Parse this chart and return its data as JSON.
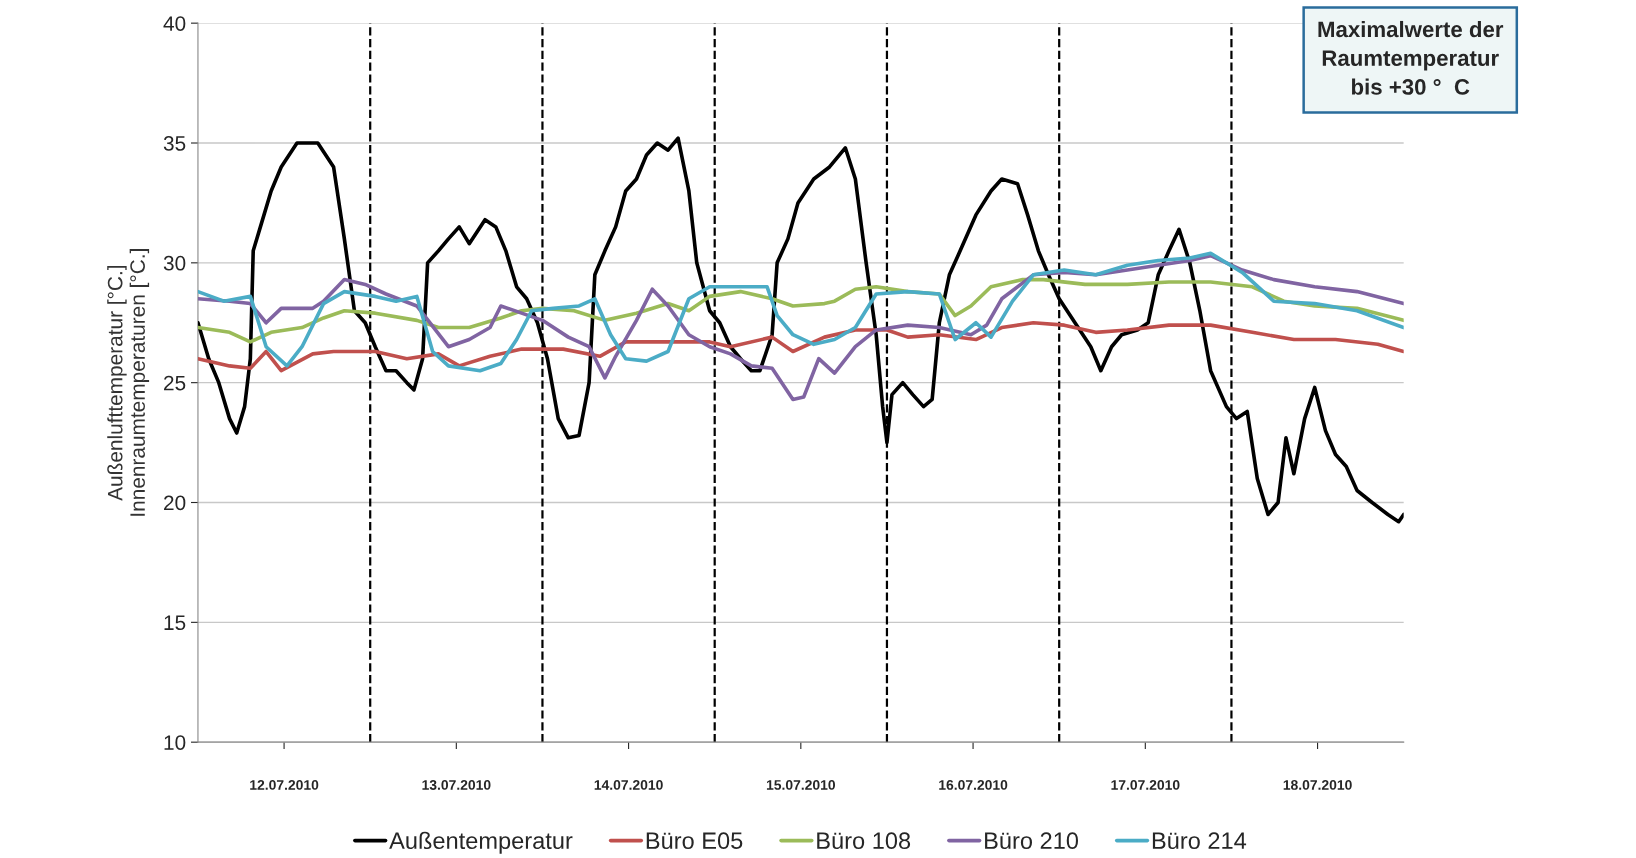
{
  "chart_data": {
    "type": "line",
    "ylabel": "Außenlufttemperatur [°C.]\nInnenraumtemperaturen [°C.]",
    "xlim": [
      "2010-07-12T00:00",
      "2010-07-19T00:00"
    ],
    "ylim": [
      10,
      40
    ],
    "yticks": [
      10,
      15,
      20,
      25,
      30,
      35,
      40
    ],
    "xticks": [
      {
        "value": "2010-07-12T12:00",
        "label": "12.07.2010"
      },
      {
        "value": "2010-07-13T12:00",
        "label": "13.07.2010"
      },
      {
        "value": "2010-07-14T12:00",
        "label": "14.07.2010"
      },
      {
        "value": "2010-07-15T12:00",
        "label": "15.07.2010"
      },
      {
        "value": "2010-07-16T12:00",
        "label": "16.07.2010"
      },
      {
        "value": "2010-07-17T12:00",
        "label": "17.07.2010"
      },
      {
        "value": "2010-07-18T12:00",
        "label": "18.07.2010"
      }
    ],
    "grid": "y",
    "legend": "bottom",
    "line_style": "solid",
    "marker": "none",
    "ref_lines": [
      {
        "axis": "x",
        "value": "2010-07-13T00:00",
        "color": "#000000",
        "line_style": "dashed"
      },
      {
        "axis": "x",
        "value": "2010-07-14T00:00",
        "color": "#000000",
        "line_style": "dashed"
      },
      {
        "axis": "x",
        "value": "2010-07-15T00:00",
        "color": "#000000",
        "line_style": "dashed"
      },
      {
        "axis": "x",
        "value": "2010-07-16T00:00",
        "color": "#000000",
        "line_style": "dashed"
      },
      {
        "axis": "x",
        "value": "2010-07-17T00:00",
        "color": "#000000",
        "line_style": "dashed"
      },
      {
        "axis": "x",
        "value": "2010-07-18T00:00",
        "color": "#000000",
        "line_style": "dashed"
      }
    ],
    "annotations": [
      "Maximalwerte der\nRaumtemperatur\nbis +30 °  C"
    ],
    "series": [
      {
        "name": "Außentemperatur",
        "color": "#000000",
        "x": [
          "2010-07-12T00:00",
          "2010-07-12T01:30",
          "2010-07-12T02:54",
          "2010-07-12T04:24",
          "2010-07-12T05:24",
          "2010-07-12T06:30",
          "2010-07-12T07:18",
          "2010-07-12T07:42",
          "2010-07-12T08:42",
          "2010-07-12T10:12",
          "2010-07-12T11:36",
          "2010-07-12T13:48",
          "2010-07-12T15:18",
          "2010-07-12T16:42",
          "2010-07-12T18:54",
          "2010-07-12T20:24",
          "2010-07-12T21:48",
          "2010-07-12T23:18",
          "2010-07-13T00:42",
          "2010-07-13T02:12",
          "2010-07-13T03:36",
          "2010-07-13T05:06",
          "2010-07-13T06:06",
          "2010-07-13T07:18",
          "2010-07-13T08:00",
          "2010-07-13T09:30",
          "2010-07-13T10:54",
          "2010-07-13T12:24",
          "2010-07-13T13:48",
          "2010-07-13T16:00",
          "2010-07-13T17:30",
          "2010-07-13T18:54",
          "2010-07-13T20:24",
          "2010-07-13T21:48",
          "2010-07-13T23:18",
          "2010-07-14T00:42",
          "2010-07-14T02:12",
          "2010-07-14T03:36",
          "2010-07-14T05:06",
          "2010-07-14T06:30",
          "2010-07-14T07:18",
          "2010-07-14T08:42",
          "2010-07-14T10:12",
          "2010-07-14T11:36",
          "2010-07-14T13:06",
          "2010-07-14T14:30",
          "2010-07-14T16:00",
          "2010-07-14T17:30",
          "2010-07-14T18:54",
          "2010-07-14T20:24",
          "2010-07-14T21:30",
          "2010-07-14T23:18",
          "2010-07-15T00:42",
          "2010-07-15T02:12",
          "2010-07-15T03:36",
          "2010-07-15T05:06",
          "2010-07-15T06:18",
          "2010-07-15T08:00",
          "2010-07-15T08:42",
          "2010-07-15T10:12",
          "2010-07-15T11:36",
          "2010-07-15T13:48",
          "2010-07-15T16:00",
          "2010-07-15T18:12",
          "2010-07-15T19:36",
          "2010-07-15T21:06",
          "2010-07-15T22:30",
          "2010-07-15T23:24",
          "2010-07-16T00:00",
          "2010-07-16T00:42",
          "2010-07-16T02:12",
          "2010-07-16T03:36",
          "2010-07-16T05:06",
          "2010-07-16T06:18",
          "2010-07-16T07:18",
          "2010-07-16T08:42",
          "2010-07-16T10:12",
          "2010-07-16T12:24",
          "2010-07-16T14:30",
          "2010-07-16T16:00",
          "2010-07-16T18:12",
          "2010-07-16T19:36",
          "2010-07-16T21:06",
          "2010-07-16T22:30",
          "2010-07-17T00:00",
          "2010-07-17T02:12",
          "2010-07-17T04:24",
          "2010-07-17T05:48",
          "2010-07-17T07:18",
          "2010-07-17T08:42",
          "2010-07-17T10:54",
          "2010-07-17T12:24",
          "2010-07-17T13:48",
          "2010-07-17T15:18",
          "2010-07-17T16:42",
          "2010-07-17T18:12",
          "2010-07-17T19:36",
          "2010-07-17T21:06",
          "2010-07-17T23:18",
          "2010-07-18T00:42",
          "2010-07-18T02:12",
          "2010-07-18T03:36",
          "2010-07-18T05:06",
          "2010-07-18T06:30",
          "2010-07-18T07:36",
          "2010-07-18T08:42",
          "2010-07-18T10:12",
          "2010-07-18T11:36",
          "2010-07-18T13:06",
          "2010-07-18T14:30",
          "2010-07-18T16:00",
          "2010-07-18T17:30",
          "2010-07-18T19:36",
          "2010-07-18T21:48",
          "2010-07-18T23:18",
          "2010-07-19T00:00"
        ],
        "values": [
          27.5,
          26,
          25,
          23.5,
          22.9,
          24,
          26,
          30.5,
          31.5,
          33,
          34,
          35,
          35,
          35,
          34,
          31,
          28,
          27.5,
          26.5,
          25.5,
          25.5,
          25,
          24.7,
          26,
          30,
          30.5,
          31,
          31.5,
          30.8,
          31.8,
          31.5,
          30.5,
          29,
          28.5,
          27.5,
          26,
          23.5,
          22.7,
          22.8,
          25,
          29.5,
          30.5,
          31.5,
          33,
          33.5,
          34.5,
          35,
          34.7,
          35.2,
          33,
          30,
          28,
          27.5,
          26.5,
          26,
          25.5,
          25.5,
          27,
          30,
          31,
          32.5,
          33.5,
          34,
          34.8,
          33.5,
          30,
          27,
          24,
          22.5,
          24.5,
          25,
          24.5,
          24,
          24.3,
          27.5,
          29.5,
          30.5,
          32,
          33,
          33.5,
          33.3,
          32,
          30.5,
          29.5,
          28.5,
          27.5,
          26.5,
          25.5,
          26.5,
          27,
          27.2,
          27.5,
          29.5,
          30.5,
          31.4,
          30,
          28,
          25.5,
          24,
          23.5,
          23.8,
          21,
          19.5,
          20,
          22.7,
          21.2,
          23.5,
          24.8,
          23,
          22,
          21.5,
          20.5,
          20,
          19.5,
          19.2,
          19.5
        ]
      },
      {
        "name": "Büro E05",
        "color": "#c0504d",
        "x": [
          "2010-07-12T00:00",
          "2010-07-12T04:24",
          "2010-07-12T07:18",
          "2010-07-12T09:30",
          "2010-07-12T11:36",
          "2010-07-12T16:00",
          "2010-07-12T18:54",
          "2010-07-13T00:42",
          "2010-07-13T05:06",
          "2010-07-13T09:30",
          "2010-07-13T12:24",
          "2010-07-13T16:42",
          "2010-07-13T21:06",
          "2010-07-14T02:54",
          "2010-07-14T08:00",
          "2010-07-14T11:36",
          "2010-07-14T17:30",
          "2010-07-14T23:18",
          "2010-07-15T02:12",
          "2010-07-15T08:00",
          "2010-07-15T10:54",
          "2010-07-15T15:18",
          "2010-07-15T19:36",
          "2010-07-16T00:00",
          "2010-07-16T02:54",
          "2010-07-16T07:18",
          "2010-07-16T12:24",
          "2010-07-16T16:00",
          "2010-07-16T20:24",
          "2010-07-17T00:42",
          "2010-07-17T05:06",
          "2010-07-17T09:30",
          "2010-07-17T15:18",
          "2010-07-17T21:06",
          "2010-07-18T02:54",
          "2010-07-18T08:42",
          "2010-07-18T14:30",
          "2010-07-18T20:24",
          "2010-07-19T00:00"
        ],
        "values": [
          26,
          25.7,
          25.6,
          26.3,
          25.5,
          26.2,
          26.3,
          26.3,
          26,
          26.2,
          25.7,
          26.1,
          26.4,
          26.4,
          26.1,
          26.7,
          26.7,
          26.7,
          26.5,
          26.9,
          26.3,
          26.9,
          27.2,
          27.2,
          26.9,
          27,
          26.8,
          27.3,
          27.5,
          27.4,
          27.1,
          27.2,
          27.4,
          27.4,
          27.1,
          26.8,
          26.8,
          26.6,
          26.3
        ]
      },
      {
        "name": "Büro 108",
        "color": "#9bbb59",
        "x": [
          "2010-07-12T00:00",
          "2010-07-12T04:24",
          "2010-07-12T07:18",
          "2010-07-12T10:12",
          "2010-07-12T14:30",
          "2010-07-12T17:30",
          "2010-07-12T20:24",
          "2010-07-13T00:42",
          "2010-07-13T06:30",
          "2010-07-13T09:30",
          "2010-07-13T13:48",
          "2010-07-13T18:12",
          "2010-07-13T21:06",
          "2010-07-14T00:00",
          "2010-07-14T04:24",
          "2010-07-14T08:42",
          "2010-07-14T13:06",
          "2010-07-14T17:30",
          "2010-07-14T20:24",
          "2010-07-14T23:18",
          "2010-07-15T03:36",
          "2010-07-15T08:00",
          "2010-07-15T10:54",
          "2010-07-15T15:18",
          "2010-07-15T16:42",
          "2010-07-15T19:36",
          "2010-07-15T22:30",
          "2010-07-16T02:54",
          "2010-07-16T07:18",
          "2010-07-16T09:30",
          "2010-07-16T11:42",
          "2010-07-16T14:30",
          "2010-07-16T18:54",
          "2010-07-16T21:48",
          "2010-07-17T03:36",
          "2010-07-17T09:30",
          "2010-07-17T15:18",
          "2010-07-17T21:06",
          "2010-07-18T02:54",
          "2010-07-18T07:18",
          "2010-07-18T11:36",
          "2010-07-18T17:30",
          "2010-07-19T00:00"
        ],
        "values": [
          27.3,
          27.1,
          26.7,
          27.1,
          27.3,
          27.7,
          28,
          27.9,
          27.6,
          27.3,
          27.3,
          27.7,
          28,
          28.1,
          28,
          27.6,
          27.9,
          28.3,
          28,
          28.6,
          28.8,
          28.5,
          28.2,
          28.3,
          28.4,
          28.9,
          29,
          28.8,
          28.7,
          27.8,
          28.2,
          29,
          29.3,
          29.3,
          29.1,
          29.1,
          29.2,
          29.2,
          29,
          28.4,
          28.2,
          28.1,
          27.6
        ]
      },
      {
        "name": "Büro 210",
        "color": "#8064a2",
        "x": [
          "2010-07-12T00:00",
          "2010-07-12T04:24",
          "2010-07-12T07:18",
          "2010-07-12T09:30",
          "2010-07-12T11:36",
          "2010-07-12T16:00",
          "2010-07-12T17:30",
          "2010-07-12T20:24",
          "2010-07-12T23:18",
          "2010-07-13T02:12",
          "2010-07-13T06:30",
          "2010-07-13T10:54",
          "2010-07-13T13:48",
          "2010-07-13T16:42",
          "2010-07-13T18:12",
          "2010-07-13T21:06",
          "2010-07-14T00:00",
          "2010-07-14T03:36",
          "2010-07-14T06:30",
          "2010-07-14T08:42",
          "2010-07-14T10:12",
          "2010-07-14T13:06",
          "2010-07-14T15:18",
          "2010-07-14T17:30",
          "2010-07-14T20:24",
          "2010-07-14T23:18",
          "2010-07-15T02:12",
          "2010-07-15T05:06",
          "2010-07-15T08:00",
          "2010-07-15T10:54",
          "2010-07-15T12:24",
          "2010-07-15T14:30",
          "2010-07-15T16:42",
          "2010-07-15T19:36",
          "2010-07-15T22:30",
          "2010-07-16T02:54",
          "2010-07-16T07:18",
          "2010-07-16T11:42",
          "2010-07-16T13:54",
          "2010-07-16T16:00",
          "2010-07-16T20:24",
          "2010-07-17T00:42",
          "2010-07-17T05:06",
          "2010-07-17T09:30",
          "2010-07-17T13:48",
          "2010-07-17T18:12",
          "2010-07-17T21:06",
          "2010-07-18T01:30",
          "2010-07-18T05:54",
          "2010-07-18T11:36",
          "2010-07-18T17:30",
          "2010-07-19T00:00"
        ],
        "values": [
          28.5,
          28.4,
          28.3,
          27.5,
          28.1,
          28.1,
          28.4,
          29.3,
          29.1,
          28.7,
          28.2,
          26.5,
          26.8,
          27.3,
          28.2,
          27.9,
          27.6,
          26.9,
          26.5,
          25.2,
          26.1,
          27.6,
          28.9,
          28.2,
          27,
          26.5,
          26.2,
          25.7,
          25.6,
          24.3,
          24.4,
          26,
          25.4,
          26.5,
          27.2,
          27.4,
          27.3,
          27,
          27.4,
          28.5,
          29.5,
          29.6,
          29.5,
          29.7,
          29.9,
          30.1,
          30.3,
          29.7,
          29.3,
          29,
          28.8,
          28.3
        ]
      },
      {
        "name": "Büro 214",
        "color": "#4bacc6",
        "x": [
          "2010-07-12T00:00",
          "2010-07-12T03:36",
          "2010-07-12T07:18",
          "2010-07-12T09:30",
          "2010-07-12T12:24",
          "2010-07-12T14:30",
          "2010-07-12T17:30",
          "2010-07-12T20:24",
          "2010-07-13T00:42",
          "2010-07-13T03:36",
          "2010-07-13T06:30",
          "2010-07-13T08:42",
          "2010-07-13T10:54",
          "2010-07-13T15:18",
          "2010-07-13T18:12",
          "2010-07-13T20:24",
          "2010-07-13T22:30",
          "2010-07-14T01:30",
          "2010-07-14T05:06",
          "2010-07-14T07:18",
          "2010-07-14T09:30",
          "2010-07-14T11:36",
          "2010-07-14T14:30",
          "2010-07-14T17:30",
          "2010-07-14T20:24",
          "2010-07-14T23:18",
          "2010-07-15T03:36",
          "2010-07-15T07:18",
          "2010-07-15T08:42",
          "2010-07-15T10:54",
          "2010-07-15T13:48",
          "2010-07-15T16:42",
          "2010-07-15T19:36",
          "2010-07-15T22:30",
          "2010-07-16T02:54",
          "2010-07-16T07:18",
          "2010-07-16T09:30",
          "2010-07-16T12:24",
          "2010-07-16T14:30",
          "2010-07-16T17:30",
          "2010-07-16T20:24",
          "2010-07-17T00:42",
          "2010-07-17T05:06",
          "2010-07-17T09:30",
          "2010-07-17T13:48",
          "2010-07-17T18:12",
          "2010-07-17T21:06",
          "2010-07-18T01:30",
          "2010-07-18T05:54",
          "2010-07-18T11:36",
          "2010-07-18T17:30",
          "2010-07-19T00:00"
        ],
        "values": [
          28.8,
          28.4,
          28.6,
          26.5,
          25.7,
          26.5,
          28.3,
          28.8,
          28.6,
          28.4,
          28.6,
          26.3,
          25.7,
          25.5,
          25.8,
          26.8,
          28,
          28.1,
          28.2,
          28.5,
          27,
          26,
          25.9,
          26.3,
          28.5,
          29,
          29,
          29,
          27.8,
          27,
          26.6,
          26.8,
          27.3,
          28.7,
          28.8,
          28.7,
          26.8,
          27.5,
          26.9,
          28.4,
          29.5,
          29.7,
          29.5,
          29.9,
          30.1,
          30.2,
          30.4,
          29.6,
          28.4,
          28.3,
          28,
          27.3
        ]
      }
    ]
  }
}
